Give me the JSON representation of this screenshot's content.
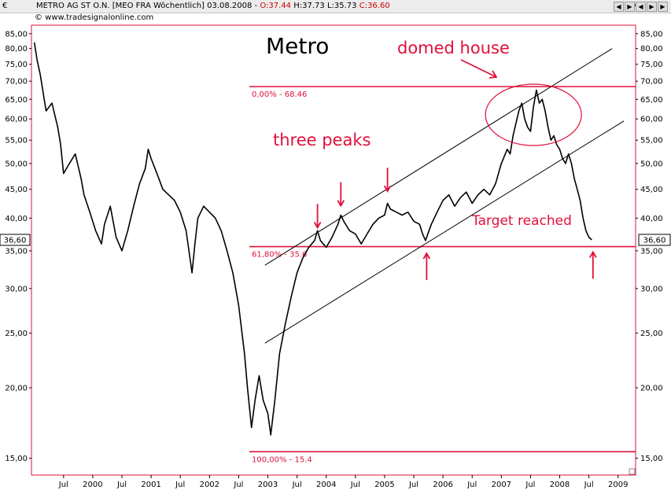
{
  "header": {
    "currency": "€",
    "title_main": "METRO AG ST O.N. [MEO FRA  Wöchentlich] 03.08.2008 - ",
    "open": "O:37.44",
    "high": "H:37.73",
    "low": "L:35.73",
    "close": "C:36.60",
    "buttons": [
      "◀",
      "▶",
      "◀",
      "▶",
      "▶"
    ]
  },
  "credit": "© www.tradesignalonline.com",
  "chart_data": {
    "type": "line",
    "title": "Metro",
    "y_scale": "log",
    "ylim": [
      14.0,
      88.0
    ],
    "y_ticks": [
      15,
      20,
      25,
      30,
      35,
      40,
      45,
      50,
      55,
      60,
      65,
      70,
      75,
      80,
      85
    ],
    "y_tick_labels": [
      "15,00",
      "20,00",
      "25,00",
      "30,00",
      "35,00",
      "40,00",
      "45,00",
      "50,00",
      "55,00",
      "60,00",
      "65,00",
      "70,00",
      "75,00",
      "80,00",
      "85,00"
    ],
    "xlim": [
      1998.95,
      2009.3
    ],
    "x_ticks": [
      {
        "x": 1999.5,
        "label": "Jul"
      },
      {
        "x": 2000.0,
        "label": "2000"
      },
      {
        "x": 2000.5,
        "label": "Jul"
      },
      {
        "x": 2001.0,
        "label": "2001"
      },
      {
        "x": 2001.5,
        "label": "Jul"
      },
      {
        "x": 2002.0,
        "label": "2002"
      },
      {
        "x": 2002.5,
        "label": "Jul"
      },
      {
        "x": 2003.0,
        "label": "2003"
      },
      {
        "x": 2003.5,
        "label": "Jul"
      },
      {
        "x": 2004.0,
        "label": "2004"
      },
      {
        "x": 2004.5,
        "label": "Jul"
      },
      {
        "x": 2005.0,
        "label": "2005"
      },
      {
        "x": 2005.5,
        "label": "Jul"
      },
      {
        "x": 2006.0,
        "label": "2006"
      },
      {
        "x": 2006.5,
        "label": "Jul"
      },
      {
        "x": 2007.0,
        "label": "2007"
      },
      {
        "x": 2007.5,
        "label": "Jul"
      },
      {
        "x": 2008.0,
        "label": "2008"
      },
      {
        "x": 2008.5,
        "label": "Jul"
      },
      {
        "x": 2009.0,
        "label": "2009"
      }
    ],
    "price": [
      [
        1999.0,
        82.0
      ],
      [
        1999.05,
        76.0
      ],
      [
        1999.1,
        72.0
      ],
      [
        1999.2,
        62.0
      ],
      [
        1999.3,
        64.0
      ],
      [
        1999.4,
        58.0
      ],
      [
        1999.45,
        54.0
      ],
      [
        1999.5,
        48.0
      ],
      [
        1999.6,
        50.0
      ],
      [
        1999.7,
        52.0
      ],
      [
        1999.8,
        47.0
      ],
      [
        1999.85,
        44.0
      ],
      [
        1999.95,
        41.0
      ],
      [
        2000.05,
        38.0
      ],
      [
        2000.15,
        36.0
      ],
      [
        2000.2,
        39.0
      ],
      [
        2000.3,
        42.0
      ],
      [
        2000.4,
        37.0
      ],
      [
        2000.5,
        35.0
      ],
      [
        2000.6,
        38.0
      ],
      [
        2000.7,
        42.0
      ],
      [
        2000.8,
        46.0
      ],
      [
        2000.9,
        49.0
      ],
      [
        2000.95,
        53.0
      ],
      [
        2001.0,
        51.0
      ],
      [
        2001.1,
        48.0
      ],
      [
        2001.2,
        45.0
      ],
      [
        2001.3,
        44.0
      ],
      [
        2001.4,
        43.0
      ],
      [
        2001.5,
        41.0
      ],
      [
        2001.6,
        38.0
      ],
      [
        2001.7,
        32.0
      ],
      [
        2001.75,
        36.0
      ],
      [
        2001.8,
        40.0
      ],
      [
        2001.9,
        42.0
      ],
      [
        2002.0,
        41.0
      ],
      [
        2002.1,
        40.0
      ],
      [
        2002.2,
        38.0
      ],
      [
        2002.3,
        35.0
      ],
      [
        2002.4,
        32.0
      ],
      [
        2002.5,
        28.0
      ],
      [
        2002.6,
        23.0
      ],
      [
        2002.65,
        20.0
      ],
      [
        2002.72,
        17.0
      ],
      [
        2002.78,
        19.0
      ],
      [
        2002.85,
        21.0
      ],
      [
        2002.92,
        19.0
      ],
      [
        2003.0,
        18.0
      ],
      [
        2003.05,
        16.5
      ],
      [
        2003.12,
        19.0
      ],
      [
        2003.2,
        23.0
      ],
      [
        2003.3,
        26.0
      ],
      [
        2003.4,
        29.0
      ],
      [
        2003.5,
        32.0
      ],
      [
        2003.6,
        34.0
      ],
      [
        2003.7,
        35.5
      ],
      [
        2003.8,
        36.5
      ],
      [
        2003.85,
        38.0
      ],
      [
        2003.9,
        36.5
      ],
      [
        2004.0,
        35.5
      ],
      [
        2004.1,
        37.0
      ],
      [
        2004.2,
        39.0
      ],
      [
        2004.25,
        40.5
      ],
      [
        2004.3,
        39.5
      ],
      [
        2004.4,
        38.0
      ],
      [
        2004.5,
        37.5
      ],
      [
        2004.6,
        36.0
      ],
      [
        2004.7,
        37.5
      ],
      [
        2004.8,
        39.0
      ],
      [
        2004.9,
        40.0
      ],
      [
        2005.0,
        40.5
      ],
      [
        2005.05,
        42.5
      ],
      [
        2005.1,
        41.5
      ],
      [
        2005.2,
        41.0
      ],
      [
        2005.3,
        40.5
      ],
      [
        2005.4,
        41.0
      ],
      [
        2005.5,
        39.5
      ],
      [
        2005.6,
        39.0
      ],
      [
        2005.65,
        37.5
      ],
      [
        2005.7,
        36.5
      ],
      [
        2005.8,
        39.0
      ],
      [
        2005.9,
        41.0
      ],
      [
        2006.0,
        43.0
      ],
      [
        2006.1,
        44.0
      ],
      [
        2006.2,
        42.0
      ],
      [
        2006.3,
        43.5
      ],
      [
        2006.4,
        44.5
      ],
      [
        2006.5,
        42.5
      ],
      [
        2006.6,
        44.0
      ],
      [
        2006.7,
        45.0
      ],
      [
        2006.8,
        44.0
      ],
      [
        2006.9,
        46.0
      ],
      [
        2007.0,
        50.0
      ],
      [
        2007.1,
        53.0
      ],
      [
        2007.15,
        52.0
      ],
      [
        2007.2,
        56.0
      ],
      [
        2007.3,
        62.0
      ],
      [
        2007.35,
        64.0
      ],
      [
        2007.4,
        60.0
      ],
      [
        2007.45,
        58.0
      ],
      [
        2007.5,
        57.0
      ],
      [
        2007.55,
        63.0
      ],
      [
        2007.6,
        67.5
      ],
      [
        2007.65,
        64.0
      ],
      [
        2007.7,
        65.0
      ],
      [
        2007.75,
        62.0
      ],
      [
        2007.8,
        58.0
      ],
      [
        2007.85,
        55.0
      ],
      [
        2007.9,
        56.0
      ],
      [
        2007.95,
        54.0
      ],
      [
        2008.0,
        53.0
      ],
      [
        2008.05,
        51.0
      ],
      [
        2008.1,
        50.0
      ],
      [
        2008.15,
        52.0
      ],
      [
        2008.2,
        50.0
      ],
      [
        2008.25,
        47.0
      ],
      [
        2008.3,
        45.0
      ],
      [
        2008.35,
        43.0
      ],
      [
        2008.4,
        40.0
      ],
      [
        2008.45,
        38.0
      ],
      [
        2008.5,
        37.0
      ],
      [
        2008.55,
        36.6
      ]
    ],
    "fib_levels": [
      {
        "label": "0,00% - 68.46",
        "value": 68.46
      },
      {
        "label": "61,80% - 35.6",
        "value": 35.6
      },
      {
        "label": "100,00% - 15.4",
        "value": 15.4
      }
    ],
    "channel_lines": [
      {
        "from": [
          2002.95,
          33.0
        ],
        "to": [
          2008.9,
          80.0
        ]
      },
      {
        "from": [
          2002.95,
          24.0
        ],
        "to": [
          2009.1,
          59.5
        ]
      }
    ],
    "last_value_label": "36,60",
    "annotations": {
      "three_peaks": "three peaks",
      "domed_house": "domed house",
      "target_reached": "Target reached"
    },
    "peak_arrows": [
      [
        2003.85,
        37.5
      ],
      [
        2004.25,
        41.0
      ],
      [
        2005.05,
        43.5
      ]
    ],
    "up_arrows": [
      [
        2005.72,
        36.0
      ],
      [
        2008.57,
        36.2
      ]
    ],
    "dome": {
      "cx": 2007.55,
      "cy": 61.0
    },
    "colors": {
      "price": "#000000",
      "annotation": "#e0103a",
      "frame": "#e0103a",
      "channel": "#000000"
    }
  }
}
